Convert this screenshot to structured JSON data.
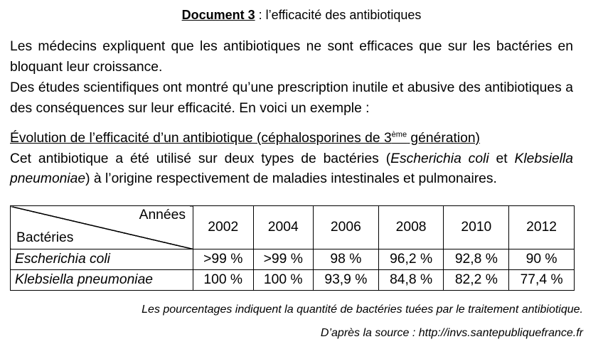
{
  "title": {
    "doc_label": "Document 3",
    "subtitle": " : l’efficacité des antibiotiques"
  },
  "intro": {
    "line1": "Les médecins expliquent que les antibiotiques ne sont efficaces que sur les bactéries en bloquant leur croissance.",
    "line2": "Des études scientifiques ont montré qu’une prescription inutile et abusive des antibiotiques a des conséquences sur leur efficacité. En voici un exemple :"
  },
  "section": {
    "heading_before": "Évolution de l’efficacité d’un antibiotique (céphalosporines de 3",
    "heading_sup": "ème",
    "heading_after": " génération)",
    "text1": "Cet antibiotique a été utilisé sur deux types de bactéries (",
    "species1": "Escherichia coli",
    "text2": " et ",
    "species2": "Klebsiella pneumoniae",
    "text3": ") à l’origine respectivement de maladies intestinales et pulmonaires."
  },
  "table": {
    "corner_top": "Années",
    "corner_bottom": "Bactéries",
    "years": [
      "2002",
      "2004",
      "2006",
      "2008",
      "2010",
      "2012"
    ],
    "rows": [
      {
        "name": "Escherichia coli",
        "values": [
          ">99 %",
          ">99 %",
          "98 %",
          "96,2 %",
          "92,8 %",
          "90 %"
        ]
      },
      {
        "name": "Klebsiella pneumoniae",
        "values": [
          "100 %",
          "100 %",
          "93,9 %",
          "84,8 %",
          "82,2 %",
          "77,4 %"
        ]
      }
    ]
  },
  "footnote": "Les pourcentages indiquent la quantité de bactéries tuées par le traitement antibiotique.",
  "source": "D’après la source : http://invs.santepubliquefrance.fr"
}
